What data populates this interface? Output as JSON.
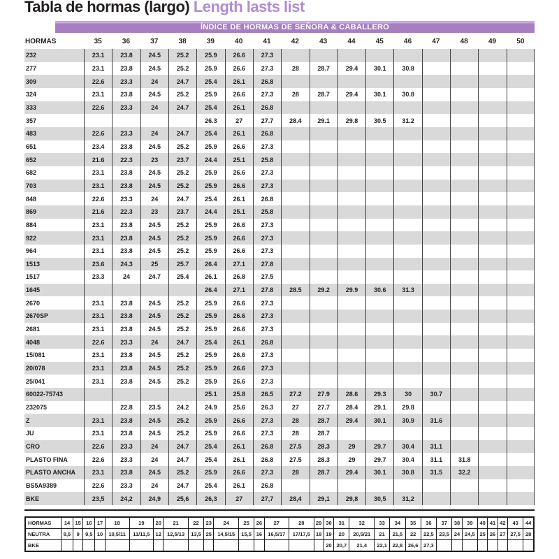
{
  "title": {
    "main": "Tabla de hormas (largo) ",
    "accent": "Length lasts list"
  },
  "banner": "ÍNDICE DE HORMAS DE SEÑORA & CABALLERO",
  "colors": {
    "accent_purple": "#a77fc0",
    "accent_light": "#c7abdb",
    "title_accent": "#b18bd0",
    "stripe_gray": "#d9d9d9",
    "text_dark": "#231f20",
    "grid_line": "#3f3f3f"
  },
  "main_table": {
    "header": [
      "HORMAS",
      "35",
      "36",
      "37",
      "38",
      "39",
      "40",
      "41",
      "42",
      "43",
      "44",
      "45",
      "46",
      "47",
      "48",
      "49",
      "50"
    ],
    "rows": [
      {
        "label": "232",
        "values": [
          "23.1",
          "23.8",
          "24.5",
          "25.2",
          "25.9",
          "26.6",
          "27.3",
          "",
          "",
          "",
          "",
          "",
          "",
          "",
          "",
          ""
        ]
      },
      {
        "label": "277",
        "values": [
          "23.1",
          "23.8",
          "24.5",
          "25.2",
          "25.9",
          "26.6",
          "27.3",
          "28",
          "28.7",
          "29.4",
          "30.1",
          "30.8",
          "",
          "",
          "",
          ""
        ]
      },
      {
        "label": "309",
        "values": [
          "22.6",
          "23.3",
          "24",
          "24.7",
          "25.4",
          "26.1",
          "26.8",
          "",
          "",
          "",
          "",
          "",
          "",
          "",
          "",
          ""
        ]
      },
      {
        "label": "324",
        "values": [
          "23.1",
          "23.8",
          "24.5",
          "25.2",
          "25.9",
          "26.6",
          "27.3",
          "28",
          "28.7",
          "29.4",
          "30.1",
          "30.8",
          "",
          "",
          "",
          ""
        ]
      },
      {
        "label": "333",
        "values": [
          "22.6",
          "23.3",
          "24",
          "24.7",
          "25.4",
          "26.1",
          "26.8",
          "",
          "",
          "",
          "",
          "",
          "",
          "",
          "",
          ""
        ]
      },
      {
        "label": "357",
        "values": [
          "",
          "",
          "",
          "",
          "26.3",
          "27",
          "27.7",
          "28.4",
          "29.1",
          "29.8",
          "30.5",
          "31.2",
          "",
          "",
          "",
          ""
        ]
      },
      {
        "label": "483",
        "values": [
          "22.6",
          "23.3",
          "24",
          "24.7",
          "25.4",
          "26.1",
          "26.8",
          "",
          "",
          "",
          "",
          "",
          "",
          "",
          "",
          ""
        ]
      },
      {
        "label": "651",
        "values": [
          "23.4",
          "23.8",
          "24.5",
          "25.2",
          "25.9",
          "26.6",
          "27.3",
          "",
          "",
          "",
          "",
          "",
          "",
          "",
          "",
          ""
        ]
      },
      {
        "label": "652",
        "values": [
          "21.6",
          "22.3",
          "23",
          "23.7",
          "24.4",
          "25.1",
          "25.8",
          "",
          "",
          "",
          "",
          "",
          "",
          "",
          "",
          ""
        ]
      },
      {
        "label": "682",
        "values": [
          "23.1",
          "23.8",
          "24.5",
          "25.2",
          "25.9",
          "26.6",
          "27.3",
          "",
          "",
          "",
          "",
          "",
          "",
          "",
          "",
          ""
        ]
      },
      {
        "label": "703",
        "values": [
          "23.1",
          "23.8",
          "24.5",
          "25.2",
          "25.9",
          "26.6",
          "27.3",
          "",
          "",
          "",
          "",
          "",
          "",
          "",
          "",
          ""
        ]
      },
      {
        "label": "848",
        "values": [
          "22.6",
          "23.3",
          "24",
          "24.7",
          "25.4",
          "26.1",
          "26.8",
          "",
          "",
          "",
          "",
          "",
          "",
          "",
          "",
          ""
        ]
      },
      {
        "label": "869",
        "values": [
          "21.6",
          "22.3",
          "23",
          "23.7",
          "24.4",
          "25.1",
          "25.8",
          "",
          "",
          "",
          "",
          "",
          "",
          "",
          "",
          ""
        ]
      },
      {
        "label": "884",
        "values": [
          "23.1",
          "23.8",
          "24.5",
          "25.2",
          "25.9",
          "26.6",
          "27.3",
          "",
          "",
          "",
          "",
          "",
          "",
          "",
          "",
          ""
        ]
      },
      {
        "label": "922",
        "values": [
          "23.1",
          "23.8",
          "24.5",
          "25.2",
          "25.9",
          "26.6",
          "27.3",
          "",
          "",
          "",
          "",
          "",
          "",
          "",
          "",
          ""
        ]
      },
      {
        "label": "964",
        "values": [
          "23.1",
          "23.8",
          "24.5",
          "25.2",
          "25.9",
          "26.6",
          "27.3",
          "",
          "",
          "",
          "",
          "",
          "",
          "",
          "",
          ""
        ]
      },
      {
        "label": "1513",
        "values": [
          "23.6",
          "24.3",
          "25",
          "25.7",
          "26.4",
          "27.1",
          "27.8",
          "",
          "",
          "",
          "",
          "",
          "",
          "",
          "",
          ""
        ]
      },
      {
        "label": "1517",
        "values": [
          "23.3",
          "24",
          "24.7",
          "25.4",
          "26.1",
          "26.8",
          "27.5",
          "",
          "",
          "",
          "",
          "",
          "",
          "",
          "",
          ""
        ]
      },
      {
        "label": "1645",
        "values": [
          "",
          "",
          "",
          "",
          "26.4",
          "27.1",
          "27.8",
          "28.5",
          "29.2",
          "29.9",
          "30.6",
          "31.3",
          "",
          "",
          "",
          ""
        ]
      },
      {
        "label": "2670",
        "values": [
          "23.1",
          "23.8",
          "24.5",
          "25.2",
          "25.9",
          "26.6",
          "27.3",
          "",
          "",
          "",
          "",
          "",
          "",
          "",
          "",
          ""
        ]
      },
      {
        "label": "2670SP",
        "values": [
          "23.1",
          "23.8",
          "24.5",
          "25.2",
          "25.9",
          "26.6",
          "27.3",
          "",
          "",
          "",
          "",
          "",
          "",
          "",
          "",
          ""
        ]
      },
      {
        "label": "2681",
        "values": [
          "23.1",
          "23.8",
          "24.5",
          "25.2",
          "25.9",
          "26.6",
          "27.3",
          "",
          "",
          "",
          "",
          "",
          "",
          "",
          "",
          ""
        ]
      },
      {
        "label": "4048",
        "values": [
          "22.6",
          "23.3",
          "24",
          "24.7",
          "25.4",
          "26.1",
          "26.8",
          "",
          "",
          "",
          "",
          "",
          "",
          "",
          "",
          ""
        ]
      },
      {
        "label": "15/081",
        "values": [
          "23.1",
          "23.8",
          "24.5",
          "25.2",
          "25.9",
          "26.6",
          "27.3",
          "",
          "",
          "",
          "",
          "",
          "",
          "",
          "",
          ""
        ]
      },
      {
        "label": "20/078",
        "values": [
          "23.1",
          "23.8",
          "24.5",
          "25.2",
          "25.9",
          "26.6",
          "27.3",
          "",
          "",
          "",
          "",
          "",
          "",
          "",
          "",
          ""
        ]
      },
      {
        "label": "25/041",
        "values": [
          "23.1",
          "23.8",
          "24.5",
          "25.2",
          "25.9",
          "26.6",
          "27.3",
          "",
          "",
          "",
          "",
          "",
          "",
          "",
          "",
          ""
        ]
      },
      {
        "label": "60022-75743",
        "values": [
          "",
          "",
          "",
          "",
          "25.1",
          "25.8",
          "26.5",
          "27.2",
          "27.9",
          "28.6",
          "29.3",
          "30",
          "30.7",
          "",
          "",
          ""
        ]
      },
      {
        "label": "232075",
        "values": [
          "",
          "22.8",
          "23.5",
          "24.2",
          "24.9",
          "25.6",
          "26.3",
          "27",
          "27.7",
          "28.4",
          "29.1",
          "29.8",
          "",
          "",
          "",
          ""
        ]
      },
      {
        "label": "Z",
        "values": [
          "23.1",
          "23.8",
          "24.5",
          "25.2",
          "25.9",
          "26.6",
          "27.3",
          "28",
          "28.7",
          "29.4",
          "30.1",
          "30.9",
          "31.6",
          "",
          "",
          ""
        ]
      },
      {
        "label": "JU",
        "values": [
          "23.1",
          "23.8",
          "24.5",
          "25.2",
          "25.9",
          "26.6",
          "27.3",
          "28",
          "28.7",
          "",
          "",
          "",
          "",
          "",
          "",
          ""
        ]
      },
      {
        "label": "CRO",
        "values": [
          "22.6",
          "23.3",
          "24",
          "24.7",
          "25.4",
          "26.1",
          "26.8",
          "27.5",
          "28.3",
          "29",
          "29.7",
          "30.4",
          "31.1",
          "",
          "",
          ""
        ]
      },
      {
        "label": "PLASTO FINA",
        "values": [
          "22.6",
          "23.3",
          "24",
          "24.7",
          "25.4",
          "26.1",
          "26.8",
          "27.5",
          "28.3",
          "29",
          "29.7",
          "30.4",
          "31.1",
          "31.8",
          "",
          ""
        ]
      },
      {
        "label": "PLASTO ANCHA",
        "values": [
          "23.1",
          "23.8",
          "24.5",
          "25.2",
          "25.9",
          "26.6",
          "27.3",
          "28",
          "28.7",
          "29.4",
          "30.1",
          "30.8",
          "31.5",
          "32.2",
          "",
          ""
        ]
      },
      {
        "label": "BS5A9389",
        "values": [
          "22.6",
          "23.3",
          "24",
          "24.7",
          "25.4",
          "26.1",
          "26.8",
          "",
          "",
          "",
          "",
          "",
          "",
          "",
          "",
          ""
        ]
      },
      {
        "label": "BKE",
        "values": [
          "23,5",
          "24,2",
          "24,9",
          "25,6",
          "26,3",
          "27",
          "27,7",
          "28,4",
          "29,1",
          "29,8",
          "30,5",
          "31,2",
          "",
          "",
          "",
          ""
        ]
      }
    ]
  },
  "bottom_table": {
    "rows": [
      {
        "label": "HORMAS",
        "values": [
          "14",
          "15",
          "16",
          "17",
          "18",
          "19",
          "20",
          "21",
          "22",
          "23",
          "24",
          "25",
          "26",
          "27",
          "28",
          "29",
          "30",
          "31",
          "32",
          "33",
          "34",
          "35",
          "36",
          "37",
          "38",
          "39",
          "40",
          "41",
          "42",
          "43",
          "44"
        ]
      },
      {
        "label": "NEUTRA",
        "values": [
          "8,5",
          "9",
          "9,5",
          "10",
          "10,5/11",
          "11/11,5",
          "12",
          "12,5/13",
          "13,5",
          "25",
          "14,5/15",
          "15,5",
          "16",
          "16,5/17",
          "17/17,5",
          "18",
          "19",
          "20",
          "20,5/21",
          "21",
          "21,5",
          "22",
          "22,5",
          "23,5",
          "24",
          "24,5",
          "25",
          "26",
          "27",
          "27,5",
          "28"
        ]
      },
      {
        "label": "BKE",
        "values": [
          "",
          "",
          "",
          "",
          "",
          "",
          "",
          "",
          "",
          "",
          "",
          "",
          "",
          "",
          "",
          "",
          "20",
          "20,7",
          "21,4",
          "22,1",
          "22,8",
          "26,6",
          "27,3",
          "",
          "",
          "",
          "",
          "",
          "",
          "",
          ""
        ]
      }
    ]
  }
}
